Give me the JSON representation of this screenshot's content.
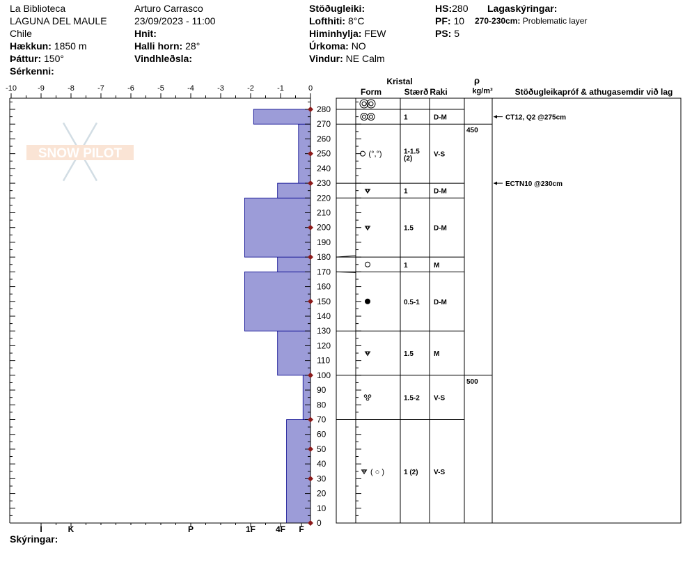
{
  "header": {
    "location": "La Biblioteca",
    "area": "LAGUNA DEL MAULE",
    "country": "Chile",
    "elevation_label": "Hækkun:",
    "elevation": "1850 m",
    "aspect_label": "Þáttur:",
    "aspect": "150°",
    "features_label": "Sérkenni:",
    "observer": "Arturo Carrasco",
    "datetime": "23/09/2023 - 11:00",
    "coords_label": "Hnit:",
    "slope_label": "Halli horn:",
    "slope": "28°",
    "wind_loading_label": "Vindhleðsla:",
    "stability_label": "Stöðugleiki:",
    "air_temp_label": "Lofthiti:",
    "air_temp": "8°C",
    "sky_label": "Himinhylja:",
    "sky": "FEW",
    "precip_label": "Úrkoma:",
    "precip": "NO",
    "wind_label": "Vindur:",
    "wind": "NE Calm",
    "hs_label": "HS:",
    "hs": "280",
    "pf_label": "PF:",
    "pf": "10",
    "ps_label": "PS:",
    "ps": "5",
    "layer_notes_label": "Lagaskýringar:",
    "layer_note_range": "270-230cm:",
    "layer_note_text": "Problematic layer"
  },
  "footer": {
    "comments_label": "Skýringar:"
  },
  "watermark": {
    "text": "SNOW PILOT"
  },
  "columns": {
    "crystal": "Kristal",
    "form": "Form",
    "size": "Stærð",
    "moisture": "Raki",
    "density_symbol": "ρ",
    "density_unit": "kg/m³",
    "tests": "Stöðugleikapróf & athugasemdir við lag"
  },
  "colors": {
    "hardness_fill": "#9c9cd8",
    "hardness_edge": "#00008b",
    "marker": "#8b1a1a"
  },
  "chart_data": {
    "type": "bar",
    "orientation": "horizontal",
    "x_axis": {
      "ticks": [
        -10,
        -9,
        -8,
        -7,
        -6,
        -5,
        -4,
        -3,
        -2,
        -1,
        0
      ],
      "range": [
        -10,
        0
      ]
    },
    "hardness_axis": {
      "labels": [
        "I",
        "K",
        "P",
        "1F",
        "4F",
        "F"
      ],
      "values": [
        9,
        8,
        4,
        2,
        1,
        0.3
      ]
    },
    "y_axis": {
      "range": [
        0,
        280
      ],
      "ticks": [
        0,
        10,
        20,
        30,
        40,
        50,
        60,
        70,
        80,
        90,
        100,
        110,
        120,
        130,
        140,
        150,
        160,
        170,
        180,
        190,
        200,
        210,
        220,
        230,
        240,
        250,
        260,
        270,
        280
      ]
    },
    "hardness_profile": [
      {
        "bottom": 0,
        "top": 70,
        "hardness": 0.8
      },
      {
        "bottom": 70,
        "top": 100,
        "hardness": 0.25
      },
      {
        "bottom": 100,
        "top": 130,
        "hardness": 1.1
      },
      {
        "bottom": 130,
        "top": 170,
        "hardness": 2.2
      },
      {
        "bottom": 170,
        "top": 180,
        "hardness": 1.1
      },
      {
        "bottom": 180,
        "top": 220,
        "hardness": 2.2
      },
      {
        "bottom": 220,
        "top": 230,
        "hardness": 1.1
      },
      {
        "bottom": 230,
        "top": 270,
        "hardness": 0.4
      },
      {
        "bottom": 270,
        "top": 280,
        "hardness": 1.9
      }
    ],
    "markers": [
      0,
      30,
      50,
      70,
      100,
      150,
      180,
      200,
      230,
      250,
      280
    ],
    "layers": [
      {
        "bottom": 280,
        "top": 285,
        "form": "surface-hoar-double",
        "size": "",
        "moisture": ""
      },
      {
        "bottom": 270,
        "top": 280,
        "form": "melt-forms-double",
        "size": "1",
        "moisture": "D-M"
      },
      {
        "bottom": 230,
        "top": 270,
        "form": "rounded-with-clusters",
        "size": "1-1.5",
        "size2": "(2)",
        "moisture": "V-S"
      },
      {
        "bottom": 220,
        "top": 230,
        "form": "faceted-rounded",
        "size": "1",
        "moisture": "D-M"
      },
      {
        "bottom": 180,
        "top": 220,
        "form": "faceted-rounded",
        "size": "1.5",
        "moisture": "D-M"
      },
      {
        "bottom": 170,
        "top": 180,
        "form": "rounded",
        "size": "1",
        "moisture": "M"
      },
      {
        "bottom": 130,
        "top": 170,
        "form": "ice",
        "size": "0.5-1",
        "moisture": "D-M"
      },
      {
        "bottom": 100,
        "top": 130,
        "form": "faceted-rounded",
        "size": "1.5",
        "moisture": "M"
      },
      {
        "bottom": 70,
        "top": 100,
        "form": "melt-clusters",
        "size": "1.5-2",
        "moisture": "V-S"
      },
      {
        "bottom": 0,
        "top": 70,
        "form": "faceted-rounded-with-rounded",
        "size": "1 (2)",
        "moisture": "V-S"
      }
    ],
    "density": [
      {
        "label": "450",
        "depth": 270
      },
      {
        "label": "500",
        "depth": 100
      }
    ],
    "tests": [
      {
        "depth": 275,
        "text": "CT12, Q2 @275cm"
      },
      {
        "depth": 230,
        "text": "ECTN10 @230cm"
      }
    ]
  }
}
